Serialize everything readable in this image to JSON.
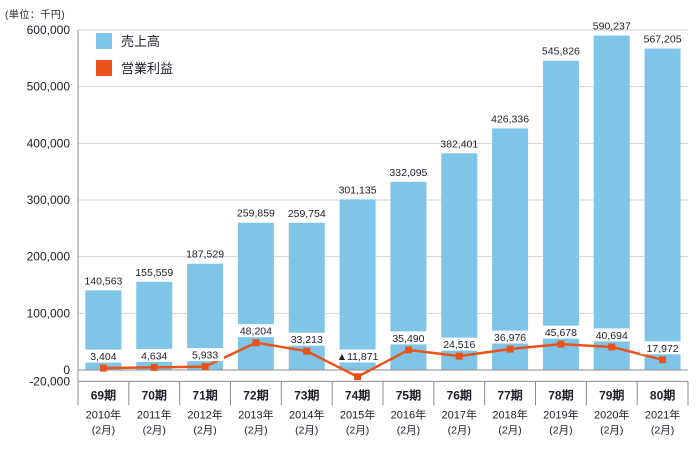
{
  "unit_label": "(単位：千円)",
  "colors": {
    "sales": "#7EC5E8",
    "profit": "#E9541D",
    "grid": "#D2D2D2",
    "axis": "#8C8C8C",
    "text": "#1E1E28"
  },
  "chart_data": {
    "type": "bar+line",
    "title": "",
    "unit": "(単位：千円)",
    "legend_position": "top-left",
    "grid": true,
    "categories": [
      {
        "period": "69期",
        "year": "2010年",
        "month": "(2月)"
      },
      {
        "period": "70期",
        "year": "2011年",
        "month": "(2月)"
      },
      {
        "period": "71期",
        "year": "2012年",
        "month": "(2月)"
      },
      {
        "period": "72期",
        "year": "2013年",
        "month": "(2月)"
      },
      {
        "period": "73期",
        "year": "2014年",
        "month": "(2月)"
      },
      {
        "period": "74期",
        "year": "2015年",
        "month": "(2月)"
      },
      {
        "period": "75期",
        "year": "2016年",
        "month": "(2月)"
      },
      {
        "period": "76期",
        "year": "2017年",
        "month": "(2月)"
      },
      {
        "period": "77期",
        "year": "2018年",
        "month": "(2月)"
      },
      {
        "period": "78期",
        "year": "2019年",
        "month": "(2月)"
      },
      {
        "period": "79期",
        "year": "2020年",
        "month": "(2月)"
      },
      {
        "period": "80期",
        "year": "2021年",
        "month": "(2月)"
      }
    ],
    "series": [
      {
        "name": "売上高",
        "type": "bar",
        "values": [
          140563,
          155559,
          187529,
          259859,
          259754,
          301135,
          332095,
          382401,
          426336,
          545826,
          590237,
          567205
        ],
        "labels": [
          "140,563",
          "155,559",
          "187,529",
          "259,859",
          "259,754",
          "301,135",
          "332,095",
          "382,401",
          "426,336",
          "545,826",
          "590,237",
          "567,205"
        ]
      },
      {
        "name": "営業利益",
        "type": "line",
        "values": [
          3404,
          4634,
          5933,
          48204,
          33213,
          -11871,
          35490,
          24516,
          36976,
          45678,
          40694,
          17972
        ],
        "labels": [
          "3,404",
          "4,634",
          "5,933",
          "48,204",
          "33,213",
          "▲11,871",
          "35,490",
          "24,516",
          "36,976",
          "45,678",
          "40,694",
          "17,972"
        ]
      }
    ],
    "ylim": [
      -20000,
      600000
    ],
    "yticks": [
      600000,
      500000,
      400000,
      300000,
      200000,
      100000,
      0,
      -20000
    ],
    "ytick_labels": [
      "600,000",
      "500,000",
      "400,000",
      "300,000",
      "200,000",
      "100,000",
      "0",
      "-20,000"
    ]
  }
}
